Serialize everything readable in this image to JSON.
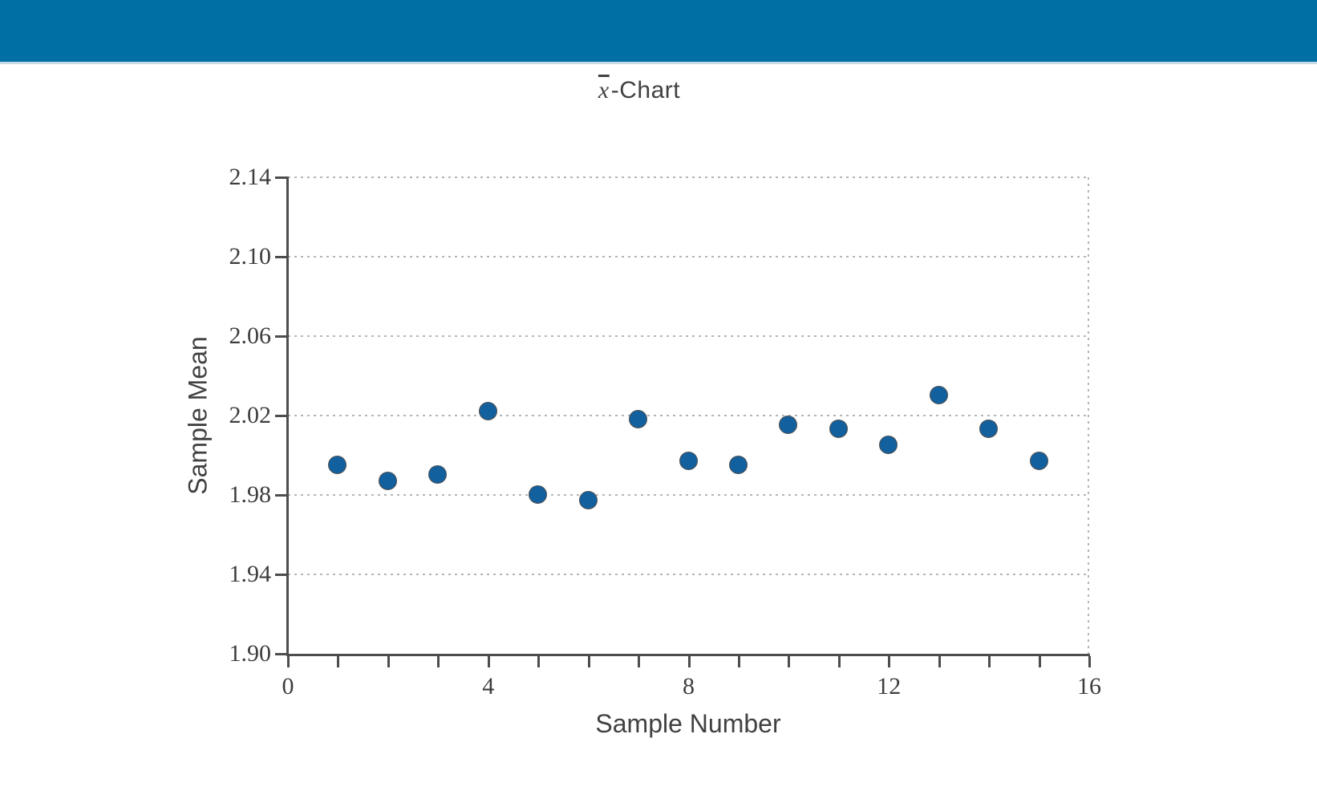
{
  "header": {
    "bar_color": "#006FA4"
  },
  "chart": {
    "title_xbar": "x",
    "title_suffix": "-Chart",
    "xlabel": "Sample Number",
    "ylabel": "Sample Mean"
  },
  "chart_data": {
    "type": "scatter",
    "title": "x̄-Chart",
    "xlabel": "Sample Number",
    "ylabel": "Sample Mean",
    "xlim": [
      0,
      16
    ],
    "ylim": [
      1.9,
      2.14
    ],
    "x_major_ticks": [
      0,
      4,
      8,
      12,
      16
    ],
    "x_minor_tick_step": 1,
    "y_ticks": [
      2.14,
      2.1,
      2.06,
      2.02,
      1.98,
      1.94,
      1.9
    ],
    "grid": "horizontal dotted lines at each y tick; dotted top and right plot borders",
    "legend": "none",
    "series": [
      {
        "name": "Sample Mean",
        "x": [
          1,
          2,
          3,
          4,
          5,
          6,
          7,
          8,
          9,
          10,
          11,
          12,
          13,
          14,
          15
        ],
        "y": [
          1.995,
          1.987,
          1.99,
          2.022,
          1.98,
          1.977,
          2.018,
          1.997,
          1.995,
          2.015,
          2.013,
          2.005,
          2.03,
          2.013,
          1.997
        ]
      }
    ],
    "marker": {
      "shape": "circle",
      "fill_color": "#13609F",
      "edge_color": "#4f4f4f"
    }
  },
  "colors": {
    "header_bar": "#006FA4",
    "header_border": "#c9dbe6",
    "axis": "#4d4d4d",
    "grid": "#b5b5b5",
    "text": "#414141",
    "marker": "#13609F"
  }
}
